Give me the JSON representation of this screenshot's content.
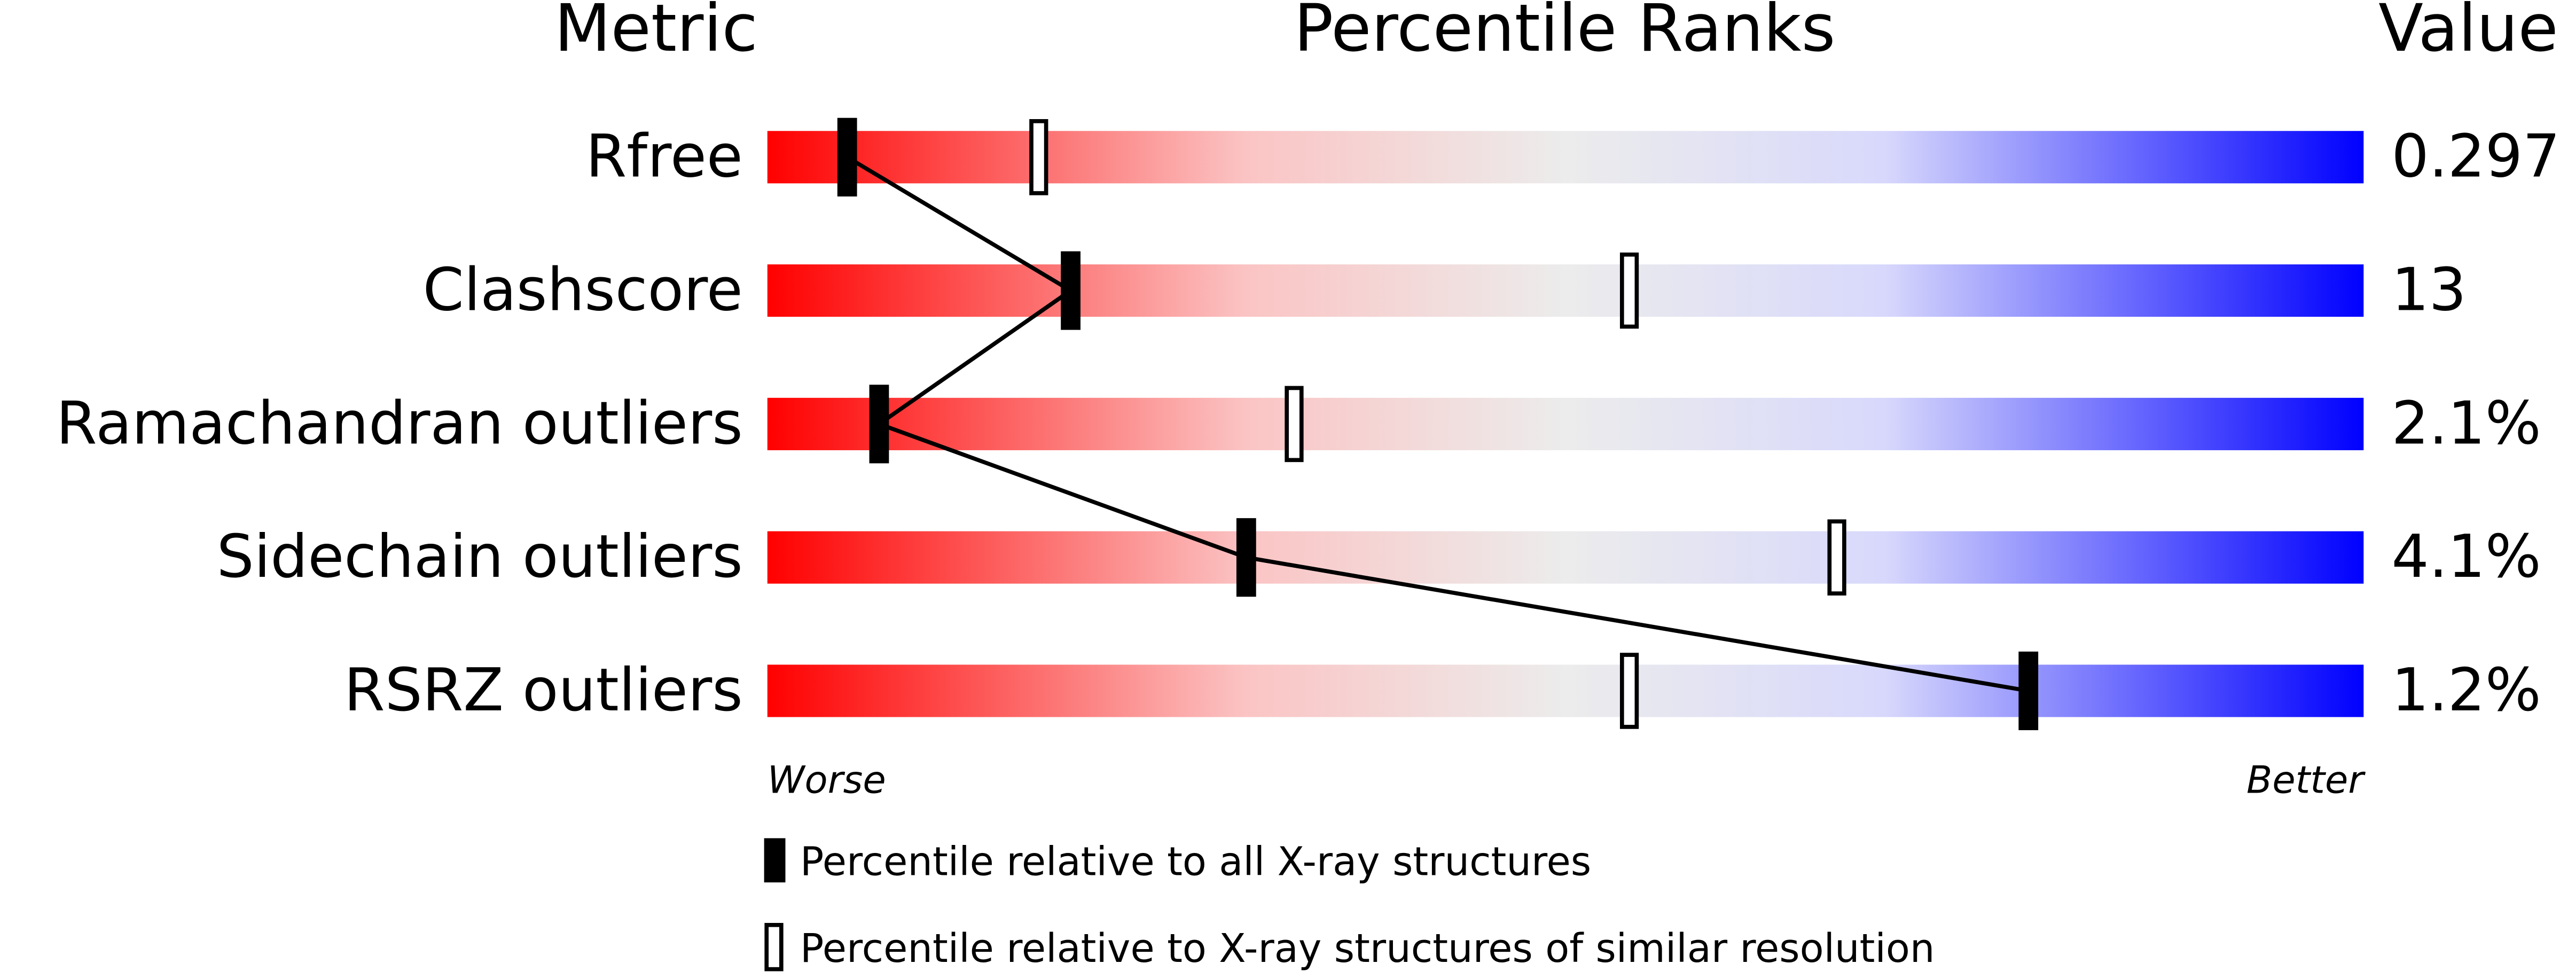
{
  "chart_data": {
    "type": "percentile",
    "column_headers": [
      "Metric",
      "Percentile Ranks",
      "Value"
    ],
    "categories": [
      "Rfree",
      "Clashscore",
      "Ramachandran outliers",
      "Sidechain outliers",
      "RSRZ outliers"
    ],
    "metric_values": [
      "0.297",
      "13",
      "2.1%",
      "4.1%",
      "1.2%"
    ],
    "axis_ends": [
      "Worse",
      "Better"
    ],
    "xlim": [
      0,
      100
    ],
    "series": [
      {
        "name": "Percentile relative to all X-ray structures",
        "color": "#000000",
        "values": [
          5,
          19,
          7,
          30,
          79
        ]
      },
      {
        "name": "Percentile relative to X-ray structures of similar resolution",
        "color": "#ffffff",
        "values": [
          17,
          54,
          33,
          67,
          54
        ]
      }
    ]
  }
}
